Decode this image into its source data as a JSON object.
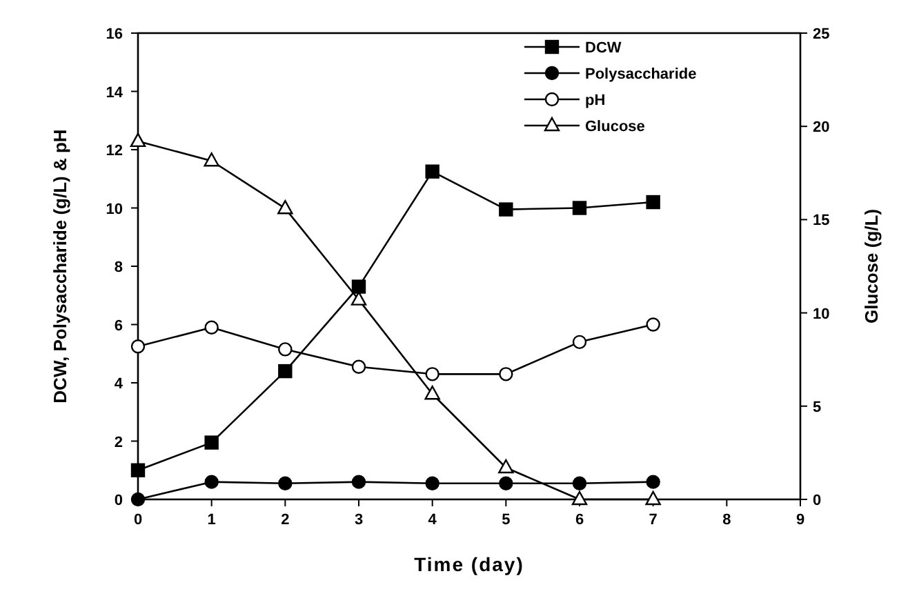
{
  "chart_data": {
    "type": "line",
    "xlabel": "Time (day)",
    "ylabel": "DCW, Polysaccharide (g/L) & pH",
    "y2label": "Glucose (g/L)",
    "x": [
      0,
      1,
      2,
      3,
      4,
      5,
      6,
      7
    ],
    "xlim": [
      0,
      9
    ],
    "xticks": [
      0,
      1,
      2,
      3,
      4,
      5,
      6,
      7,
      8,
      9
    ],
    "ylim": [
      0,
      16
    ],
    "yticks": [
      0,
      2,
      4,
      6,
      8,
      10,
      12,
      14,
      16
    ],
    "y2lim": [
      0,
      25
    ],
    "y2ticks": [
      0,
      5,
      10,
      15,
      20,
      25
    ],
    "grid": false,
    "legend": "top right",
    "series": [
      {
        "name": "DCW",
        "color": "#000000",
        "marker": "square",
        "values": [
          1.0,
          1.95,
          4.4,
          7.3,
          11.25,
          9.95,
          10.0,
          10.2
        ]
      },
      {
        "name": "Polysaccharide",
        "color": "#000000",
        "marker": "circle",
        "values": [
          0,
          0.6,
          0.55,
          0.6,
          0.55,
          0.55,
          0.55,
          0.6
        ]
      },
      {
        "name": "pH",
        "color": "#ffffff",
        "marker": "circle",
        "values": [
          5.25,
          5.9,
          5.15,
          4.55,
          4.3,
          4.3,
          5.4,
          6.0
        ]
      },
      {
        "name": "Glucose",
        "color": "#ffffff",
        "marker": "triangle",
        "axis": "y2",
        "values": [
          19.2,
          18.15,
          15.6,
          10.7,
          5.65,
          1.7,
          0,
          0
        ]
      }
    ]
  }
}
